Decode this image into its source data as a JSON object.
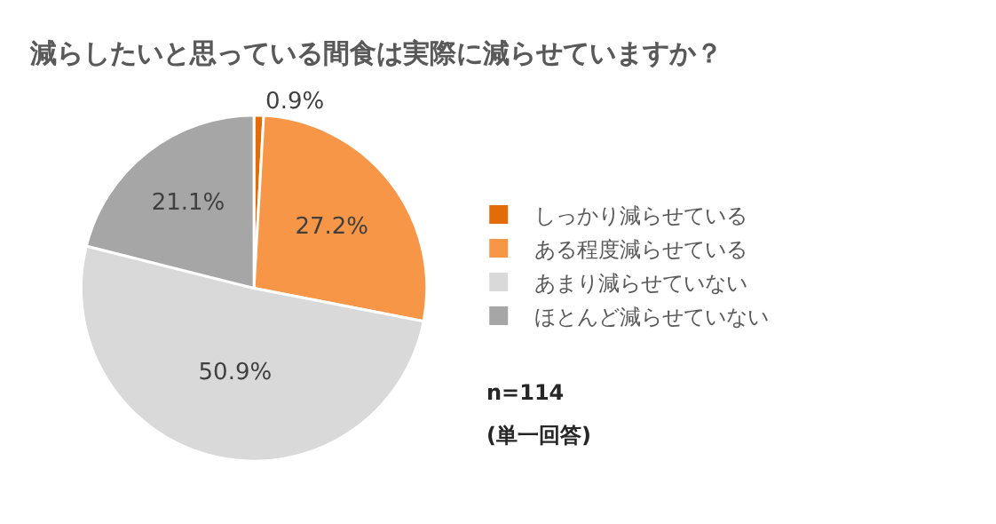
{
  "chart_data": {
    "type": "pie",
    "title": "減らしたいと思っている間食は実際に減らせていますか？",
    "categories": [
      "しっかり減らせている",
      "ある程度減らせている",
      "あまり減らせていない",
      "ほとんど減らせていない"
    ],
    "values": [
      0.9,
      27.2,
      50.9,
      21.1
    ],
    "value_labels": [
      "0.9%",
      "27.2%",
      "50.9%",
      "21.1%"
    ],
    "colors": [
      "#e36c0a",
      "#f79646",
      "#d9d9d9",
      "#a6a6a6"
    ],
    "legend": "right",
    "annotations": [
      "n=114",
      "(単一回答)"
    ]
  }
}
